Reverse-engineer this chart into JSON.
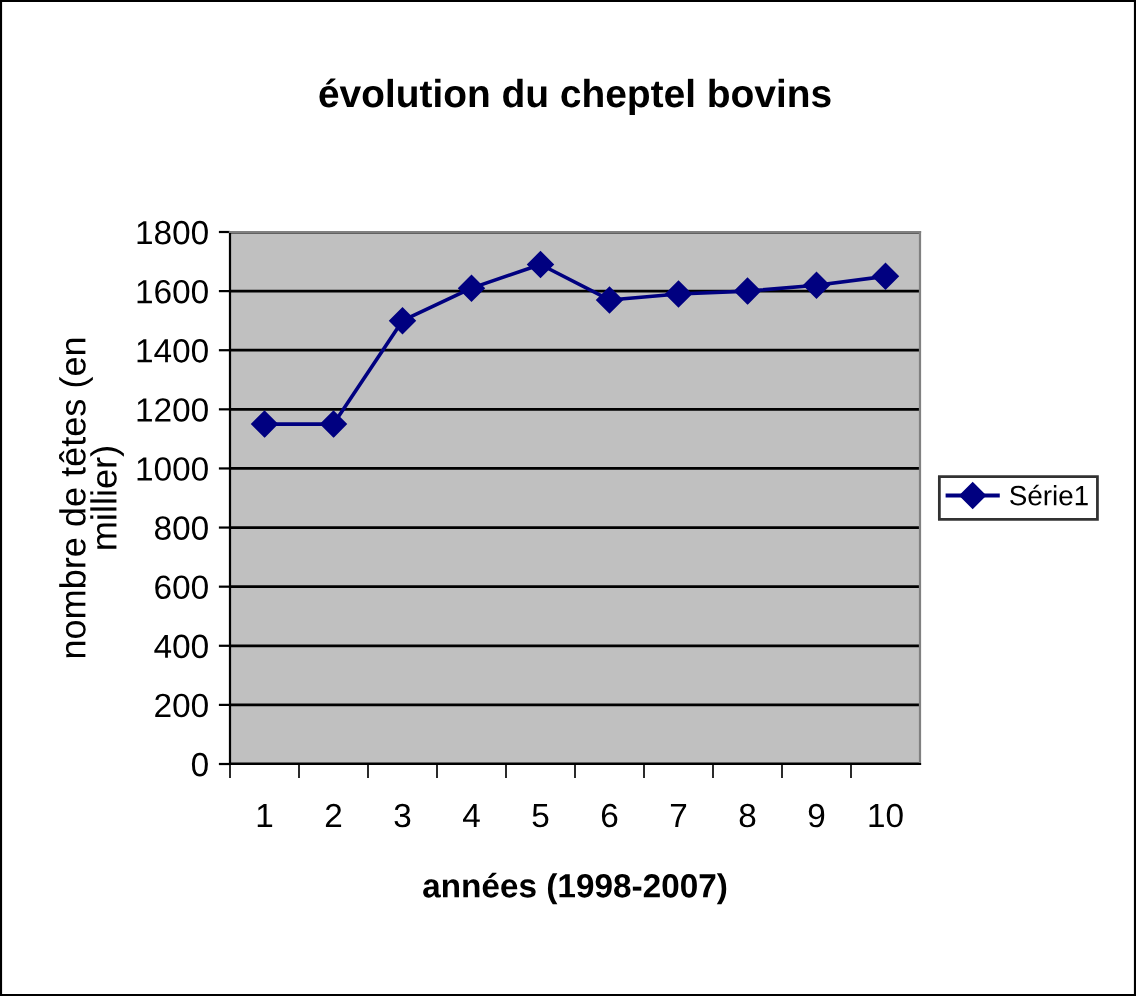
{
  "chart_data": {
    "type": "line",
    "title": "évolution du cheptel bovins",
    "xlabel": "années (1998-2007)",
    "ylabel": "nombre de têtes (en millier)",
    "categories": [
      "1",
      "2",
      "3",
      "4",
      "5",
      "6",
      "7",
      "8",
      "9",
      "10"
    ],
    "series": [
      {
        "name": "Série1",
        "color": "#000080",
        "values": [
          1150,
          1150,
          1500,
          1610,
          1690,
          1570,
          1590,
          1600,
          1620,
          1650
        ]
      }
    ],
    "ylim": [
      0,
      1800
    ],
    "yticks": [
      0,
      200,
      400,
      600,
      800,
      1000,
      1200,
      1400,
      1600,
      1800
    ],
    "grid": "y",
    "legend": "right",
    "marker": "diamond",
    "line_style": "solid"
  }
}
